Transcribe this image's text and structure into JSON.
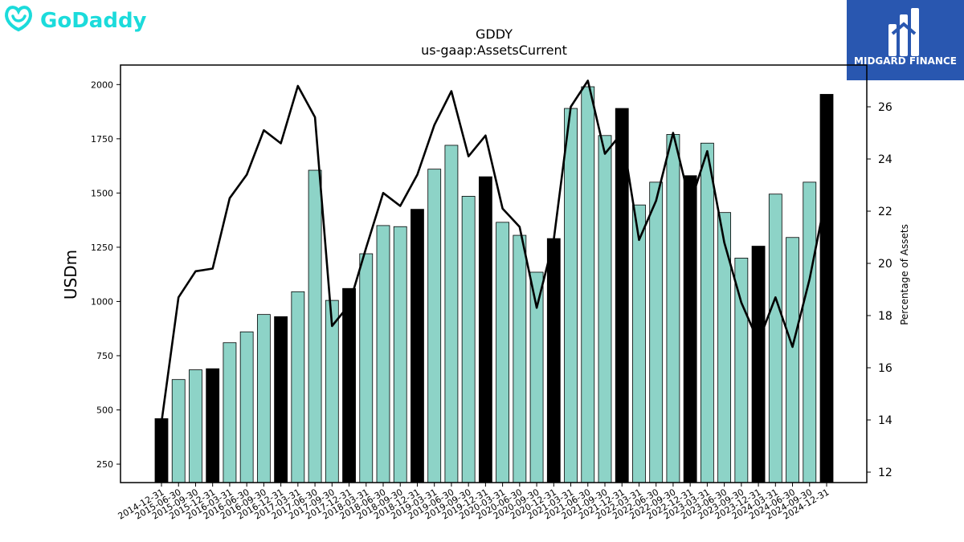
{
  "brand": {
    "logo_text": "GoDaddy",
    "badge_text": "MIDGARD FINANCE",
    "logo_color": "#1bdbdb",
    "badge_color": "#2957b0"
  },
  "chart_data": {
    "type": "bar",
    "title": "GDDY",
    "subtitle": "us-gaap:AssetsCurrent",
    "ylabel": "USDm",
    "y2label": "Percentage of Assets",
    "ylim": [
      165,
      2090
    ],
    "y2lim": [
      11.6,
      27.6
    ],
    "yticks": [
      250,
      500,
      750,
      1000,
      1250,
      1500,
      1750,
      2000
    ],
    "y2ticks": [
      12,
      14,
      16,
      18,
      20,
      22,
      24,
      26
    ],
    "bar_color": "#8dd3c7",
    "highlight_color": "#000000",
    "line_color": "#000000",
    "categories": [
      "2014-12-31",
      "2015-06-30",
      "2015-09-30",
      "2015-12-31",
      "2016-03-31",
      "2016-06-30",
      "2016-09-30",
      "2016-12-31",
      "2017-03-31",
      "2017-06-30",
      "2017-09-30",
      "2017-12-31",
      "2018-03-31",
      "2018-06-30",
      "2018-09-30",
      "2018-12-31",
      "2019-03-31",
      "2019-06-30",
      "2019-09-30",
      "2019-12-31",
      "2020-03-31",
      "2020-06-30",
      "2020-09-30",
      "2020-12-31",
      "2021-03-31",
      "2021-06-30",
      "2021-09-30",
      "2021-12-31",
      "2022-03-31",
      "2022-06-30",
      "2022-09-30",
      "2022-12-31",
      "2023-03-31",
      "2023-06-30",
      "2023-09-30",
      "2023-12-31",
      "2024-03-31",
      "2024-06-30",
      "2024-09-30",
      "2024-12-31"
    ],
    "series": [
      {
        "type": "bar",
        "values": [
          460,
          640,
          685,
          690,
          810,
          860,
          940,
          930,
          1045,
          1605,
          1005,
          1060,
          1220,
          1350,
          1345,
          1425,
          1610,
          1720,
          1485,
          1575,
          1365,
          1305,
          1135,
          1290,
          1890,
          1990,
          1765,
          1890,
          1445,
          1550,
          1770,
          1580,
          1730,
          1410,
          1200,
          1255,
          1495,
          1295,
          1550,
          1955
        ],
        "highlight": [
          true,
          false,
          false,
          true,
          false,
          false,
          false,
          true,
          false,
          false,
          false,
          true,
          false,
          false,
          false,
          true,
          false,
          false,
          false,
          true,
          false,
          false,
          false,
          true,
          false,
          false,
          false,
          true,
          false,
          false,
          false,
          true,
          false,
          false,
          false,
          true,
          false,
          false,
          false,
          true
        ]
      },
      {
        "type": "line",
        "values": [
          13.9,
          18.7,
          19.7,
          19.8,
          22.5,
          23.4,
          25.1,
          24.6,
          26.8,
          25.6,
          17.6,
          18.4,
          20.6,
          22.7,
          22.2,
          23.4,
          25.3,
          26.6,
          24.1,
          24.9,
          22.1,
          21.4,
          18.3,
          20.9,
          26.0,
          27.0,
          24.2,
          25.0,
          20.9,
          22.4,
          25.0,
          22.3,
          24.3,
          20.8,
          18.5,
          17.0,
          18.7,
          16.8,
          19.4,
          22.7
        ]
      }
    ]
  }
}
